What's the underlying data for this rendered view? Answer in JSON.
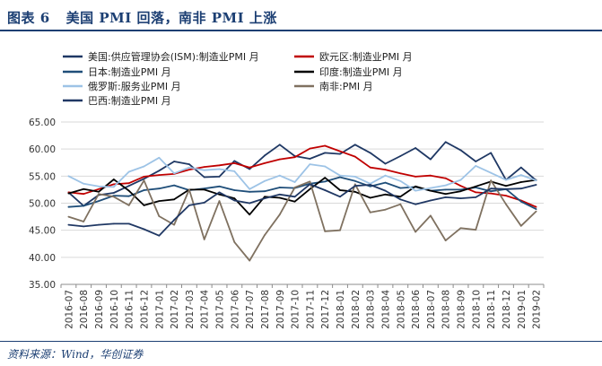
{
  "figure": {
    "label": "图表 6",
    "title": "美国 PMI 回落，南非 PMI 上涨",
    "source_prefix": "资料来源：",
    "source_names": "Wind，华创证券"
  },
  "chart_data": {
    "type": "line",
    "title": "美国 PMI 回落，南非 PMI 上涨",
    "xlabel": "",
    "ylabel": "",
    "ylim": [
      35.0,
      65.0
    ],
    "yticks": [
      "65.00",
      "60.00",
      "55.00",
      "50.00",
      "45.00",
      "40.00",
      "35.00"
    ],
    "ytick_values": [
      65,
      60,
      55,
      50,
      45,
      40,
      35
    ],
    "grid": "horizontal",
    "legend_position": "top",
    "categories": [
      "2016-07",
      "2016-08",
      "2016-09",
      "2016-10",
      "2016-11",
      "2016-12",
      "2017-01",
      "2017-02",
      "2017-03",
      "2017-04",
      "2017-05",
      "2017-06",
      "2017-07",
      "2017-08",
      "2017-09",
      "2017-10",
      "2017-11",
      "2017-12",
      "2018-01",
      "2018-02",
      "2018-03",
      "2018-04",
      "2018-05",
      "2018-06",
      "2018-07",
      "2018-08",
      "2018-09",
      "2018-10",
      "2018-11",
      "2018-12",
      "2019-01",
      "2019-02"
    ],
    "series": [
      {
        "name": "美国:供应管理协会(ISM):制造业PMI 月",
        "color": "#1f3864",
        "values": [
          52.0,
          49.5,
          51.5,
          51.9,
          53.2,
          54.5,
          56.0,
          57.7,
          57.2,
          54.8,
          54.9,
          57.8,
          56.3,
          58.8,
          60.8,
          58.7,
          58.2,
          59.3,
          59.1,
          60.8,
          59.3,
          57.3,
          58.7,
          60.2,
          58.1,
          61.3,
          59.8,
          57.7,
          59.3,
          54.3,
          56.6,
          54.2
        ]
      },
      {
        "name": "欧元区:制造业PMI 月",
        "color": "#c00000",
        "values": [
          52.0,
          51.7,
          52.6,
          53.5,
          53.7,
          54.9,
          55.2,
          55.4,
          56.2,
          56.7,
          57.0,
          57.4,
          56.6,
          57.4,
          58.1,
          58.5,
          60.1,
          60.6,
          59.6,
          58.6,
          56.6,
          56.2,
          55.5,
          54.9,
          55.1,
          54.6,
          53.2,
          52.0,
          51.8,
          51.4,
          50.5,
          49.3
        ]
      },
      {
        "name": "日本:制造业PMI 月",
        "color": "#1f4e79",
        "values": [
          49.3,
          49.5,
          50.4,
          51.4,
          51.3,
          52.4,
          52.7,
          53.3,
          52.4,
          52.7,
          53.1,
          52.4,
          52.1,
          52.2,
          52.9,
          52.8,
          53.6,
          54.0,
          54.8,
          54.1,
          53.1,
          53.8,
          52.8,
          53.0,
          52.3,
          52.5,
          52.5,
          52.9,
          52.2,
          52.6,
          50.3,
          48.9
        ]
      },
      {
        "name": "印度:制造业PMI 月",
        "color": "#000000",
        "values": [
          51.8,
          52.6,
          52.1,
          54.4,
          52.3,
          49.6,
          50.4,
          50.7,
          52.5,
          52.5,
          51.6,
          50.9,
          47.9,
          51.2,
          51.0,
          50.3,
          52.6,
          54.7,
          52.4,
          52.1,
          51.0,
          51.6,
          51.2,
          53.1,
          52.3,
          51.7,
          52.2,
          53.1,
          54.0,
          53.2,
          53.9,
          54.3
        ]
      },
      {
        "name": "俄罗斯:服务业PMI 月",
        "color": "#9dc3e6",
        "values": [
          55.0,
          53.6,
          53.1,
          53.0,
          55.8,
          56.8,
          58.4,
          55.5,
          56.6,
          56.1,
          56.3,
          55.9,
          52.6,
          54.1,
          55.1,
          53.9,
          57.2,
          56.8,
          55.1,
          54.9,
          53.6,
          55.1,
          54.1,
          52.3,
          52.8,
          53.3,
          54.3,
          56.9,
          55.6,
          54.3,
          55.2,
          54.2
        ]
      },
      {
        "name": "南非:PMI 月",
        "color": "#7f7160",
        "values": [
          47.5,
          46.6,
          51.7,
          51.2,
          49.6,
          54.2,
          47.6,
          46.0,
          52.5,
          43.3,
          50.4,
          42.8,
          39.4,
          44.1,
          47.9,
          52.9,
          54.0,
          44.8,
          45.0,
          53.5,
          48.3,
          48.8,
          49.8,
          44.7,
          47.7,
          43.1,
          45.4,
          45.1,
          54.2,
          49.8,
          45.8,
          48.5
        ]
      },
      {
        "name": "巴西:制造业PMI 月",
        "color": "#203864",
        "values": [
          46.0,
          45.7,
          46.0,
          46.2,
          46.2,
          45.2,
          44.0,
          46.9,
          49.6,
          50.1,
          52.0,
          50.5,
          50.0,
          50.9,
          51.6,
          51.2,
          53.5,
          52.4,
          51.2,
          53.2,
          53.4,
          52.3,
          50.7,
          49.8,
          50.5,
          51.1,
          50.9,
          51.1,
          52.7,
          52.6,
          52.7,
          53.4
        ]
      }
    ]
  }
}
